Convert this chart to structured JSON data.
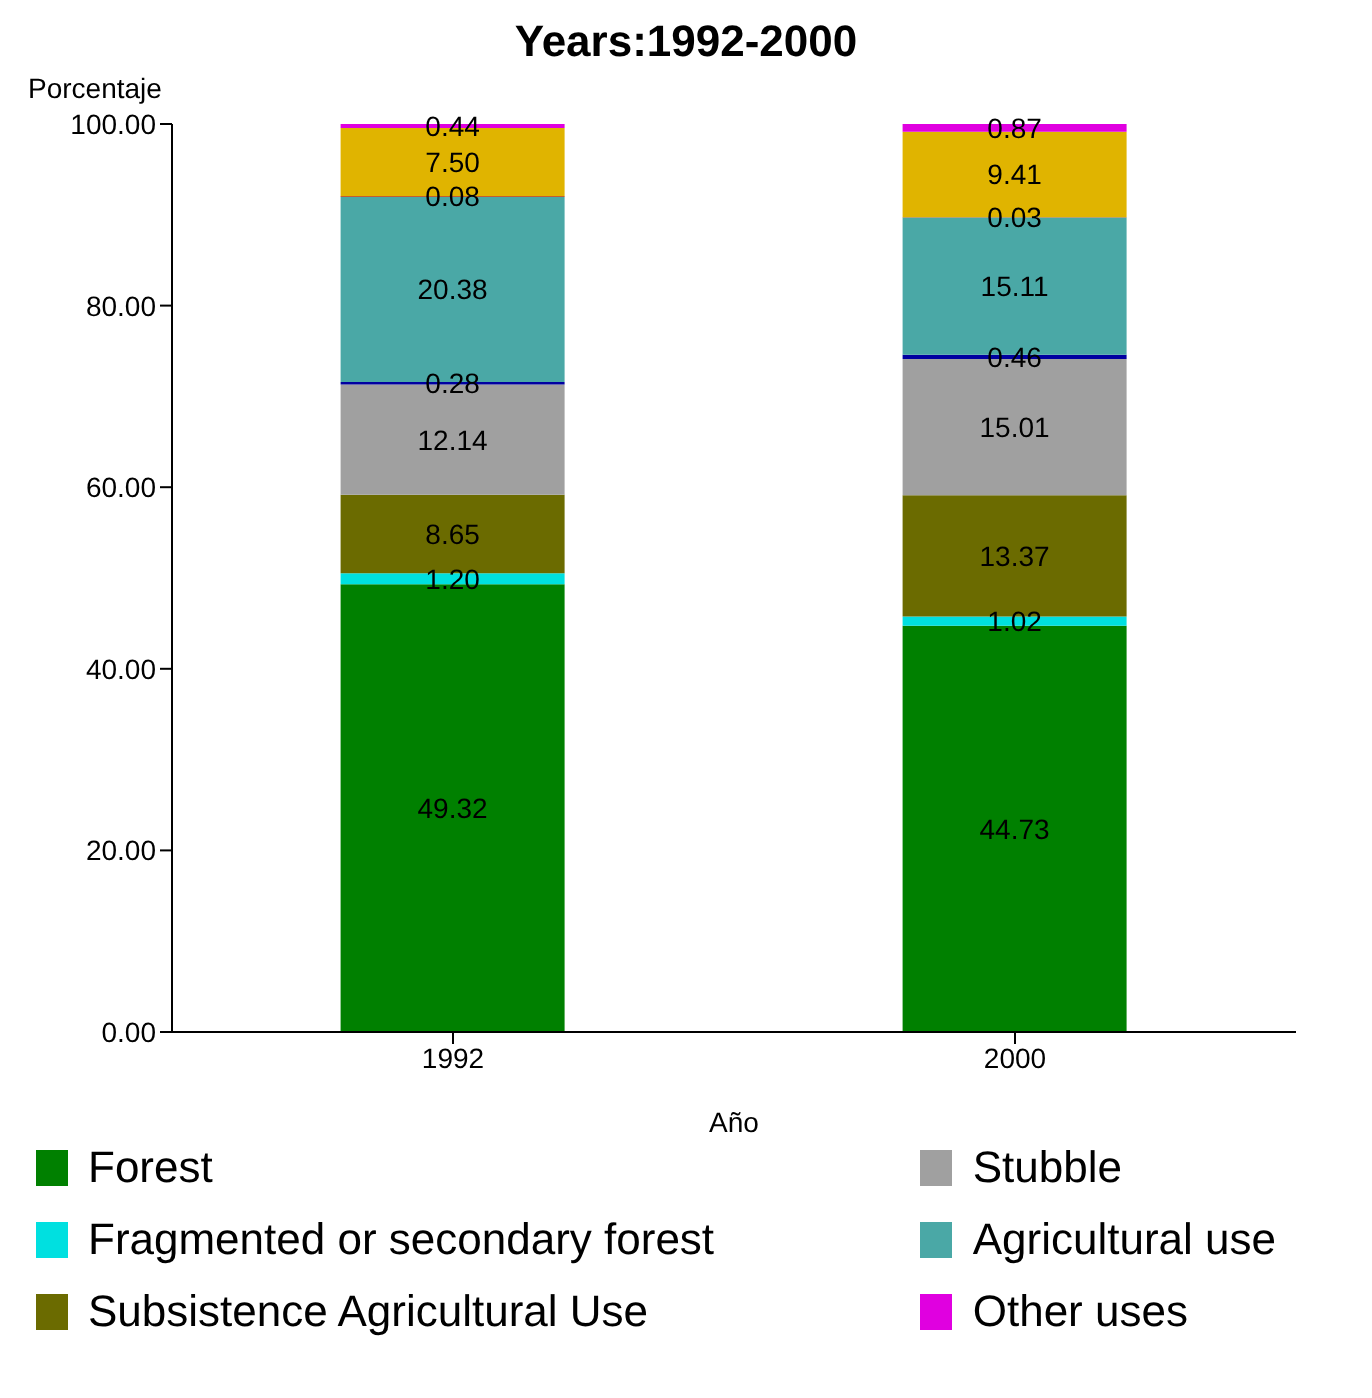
{
  "chart_data": {
    "type": "bar",
    "stacked": true,
    "title": "Years:1992-2000",
    "xlabel": "Año",
    "ylabel": "Porcentaje",
    "categories": [
      "1992",
      "2000"
    ],
    "ylim": [
      0,
      100
    ],
    "yticks": [
      {
        "value": 0,
        "label": "0.00"
      },
      {
        "value": 20,
        "label": "20.00"
      },
      {
        "value": 40,
        "label": "40.00"
      },
      {
        "value": 60,
        "label": "60.00"
      },
      {
        "value": 80,
        "label": "80.00"
      },
      {
        "value": 100,
        "label": "100.00"
      }
    ],
    "grid": false,
    "legend": "bottom",
    "series": [
      {
        "name": "Forest",
        "color": "#008000",
        "values": [
          49.32,
          44.73
        ],
        "value_labels": [
          "49.32",
          "44.73"
        ]
      },
      {
        "name": "Fragmented or secondary forest",
        "color": "#00e0e0",
        "values": [
          1.2,
          1.02
        ],
        "value_labels": [
          "1.20",
          "1.02"
        ]
      },
      {
        "name": "Subsistence Agricultural Use",
        "color": "#6b6b00",
        "values": [
          8.65,
          13.37
        ],
        "value_labels": [
          "8.65",
          "13.37"
        ]
      },
      {
        "name": "Stubble",
        "color": "#a0a0a0",
        "values": [
          12.14,
          15.01
        ],
        "value_labels": [
          "12.14",
          "15.01"
        ]
      },
      {
        "color": "#0000a0",
        "values": [
          0.28,
          0.46
        ],
        "value_labels": [
          "0.28",
          "0.46"
        ]
      },
      {
        "name": "Agricultural use",
        "color": "#4aa8a6",
        "values": [
          20.38,
          15.11
        ],
        "value_labels": [
          "20.38",
          "15.11"
        ]
      },
      {
        "color": "#a00000",
        "values": [
          0.08,
          0.03
        ],
        "value_labels": [
          "0.08",
          "0.03"
        ]
      },
      {
        "color": "#e0b400",
        "values": [
          7.5,
          9.41
        ],
        "value_labels": [
          "7.50",
          "9.41"
        ]
      },
      {
        "name": "Other uses",
        "color": "#e000e0",
        "values": [
          0.44,
          0.87
        ],
        "value_labels": [
          "0.44",
          "0.87"
        ]
      }
    ]
  }
}
